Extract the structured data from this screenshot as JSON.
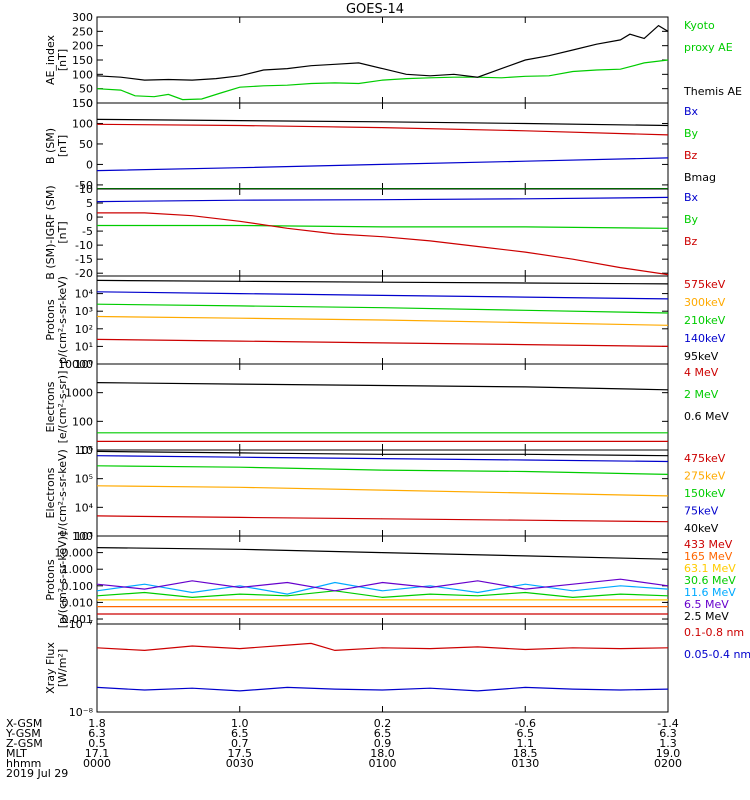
{
  "title": "GOES-14",
  "chart_data": [
    {
      "type": "line",
      "ylabel": [
        "AE_index",
        "[nT]"
      ],
      "ylim": [
        0,
        300
      ],
      "yscale": "linear",
      "yticks": [
        "0",
        "50",
        "100",
        "150",
        "200",
        "250",
        "300"
      ],
      "yvals": [
        0,
        50,
        100,
        150,
        200,
        250,
        300
      ],
      "legend": [
        "Kyoto",
        "proxy AE",
        "",
        "Themis AE"
      ],
      "legend_colors": [
        "#00cc00",
        "#00cc00",
        "#000000",
        "#000000"
      ],
      "series": [
        {
          "name": "Kyoto proxy AE",
          "color": "#00cc00",
          "x": [
            0,
            5,
            8,
            12,
            15,
            18,
            22,
            26,
            30,
            35,
            40,
            45,
            50,
            55,
            60,
            65,
            70,
            75,
            80,
            85,
            90,
            95,
            100,
            105,
            110,
            115,
            120
          ],
          "values": [
            50,
            45,
            25,
            22,
            30,
            12,
            14,
            35,
            55,
            60,
            62,
            68,
            70,
            68,
            80,
            85,
            88,
            90,
            90,
            88,
            93,
            95,
            110,
            115,
            118,
            140,
            150
          ]
        },
        {
          "name": "Themis AE",
          "color": "#000000",
          "x": [
            0,
            5,
            10,
            15,
            20,
            25,
            30,
            35,
            40,
            45,
            50,
            55,
            60,
            65,
            70,
            75,
            80,
            85,
            90,
            95,
            100,
            105,
            110,
            112,
            115,
            118,
            120
          ],
          "values": [
            95,
            90,
            80,
            82,
            80,
            85,
            95,
            115,
            120,
            130,
            135,
            140,
            120,
            100,
            95,
            100,
            90,
            120,
            150,
            165,
            185,
            205,
            220,
            240,
            225,
            270,
            250
          ]
        }
      ]
    },
    {
      "type": "line",
      "ylabel": [
        "B (SM)",
        "[nT]"
      ],
      "ylim": [
        -60,
        150
      ],
      "yscale": "linear",
      "yticks": [
        "-50",
        "0",
        "50",
        "100",
        "150"
      ],
      "yvals": [
        -50,
        0,
        50,
        100,
        150
      ],
      "legend": [
        "Bx",
        "By",
        "Bz",
        "Bmag"
      ],
      "legend_colors": [
        "#0000cc",
        "#00cc00",
        "#cc0000",
        "#000000"
      ],
      "series": [
        {
          "name": "Bx",
          "color": "#0000cc",
          "x": [
            0,
            30,
            60,
            90,
            120
          ],
          "values": [
            -15,
            -8,
            0,
            8,
            16
          ]
        },
        {
          "name": "By",
          "color": "#00cc00",
          "x": [
            0,
            30,
            60,
            90,
            120
          ],
          "values": [
            -59,
            -59,
            -59,
            -59,
            -59
          ]
        },
        {
          "name": "Bz",
          "color": "#cc0000",
          "x": [
            0,
            30,
            60,
            90,
            120
          ],
          "values": [
            98,
            95,
            90,
            82,
            72
          ]
        },
        {
          "name": "Bmag",
          "color": "#000000",
          "x": [
            0,
            30,
            60,
            90,
            120
          ],
          "values": [
            110,
            107,
            104,
            100,
            95
          ]
        }
      ]
    },
    {
      "type": "line",
      "ylabel": [
        "B (SM)-IGRF (SM)",
        "[nT]"
      ],
      "ylim": [
        -21,
        10
      ],
      "yscale": "linear",
      "yticks": [
        "-20",
        "-15",
        "-10",
        "-5",
        "0",
        "5",
        "10"
      ],
      "yvals": [
        -20,
        -15,
        -10,
        -5,
        0,
        5,
        10
      ],
      "legend": [
        "Bx",
        "By",
        "Bz"
      ],
      "legend_colors": [
        "#0000cc",
        "#00cc00",
        "#cc0000"
      ],
      "series": [
        {
          "name": "Bx",
          "color": "#0000cc",
          "x": [
            0,
            30,
            60,
            90,
            120
          ],
          "values": [
            5.5,
            6,
            6.2,
            6.5,
            7
          ]
        },
        {
          "name": "By",
          "color": "#00cc00",
          "x": [
            0,
            30,
            60,
            90,
            120
          ],
          "values": [
            -3,
            -3,
            -3.5,
            -3.5,
            -4
          ]
        },
        {
          "name": "Bz",
          "color": "#cc0000",
          "x": [
            0,
            10,
            20,
            30,
            40,
            50,
            60,
            70,
            80,
            90,
            100,
            110,
            120
          ],
          "values": [
            1.5,
            1.5,
            0.5,
            -1.5,
            -4,
            -6,
            -7,
            -8.5,
            -10.5,
            -12.5,
            -15,
            -18,
            -20.5
          ]
        }
      ]
    },
    {
      "type": "line",
      "ylabel": [
        "Protons",
        "p/(cm²-s-sr-keV)"
      ],
      "ylim": [
        0,
        5
      ],
      "yscale": "log",
      "yticks": [
        "10⁰",
        "10¹",
        "10²",
        "10³",
        "10⁴"
      ],
      "yvals": [
        0,
        1,
        2,
        3,
        4
      ],
      "legend": [
        "575keV",
        "300keV",
        "210keV",
        "140keV",
        "95keV"
      ],
      "legend_colors": [
        "#cc0000",
        "#ffaa00",
        "#00cc00",
        "#0000cc",
        "#000000"
      ],
      "series": [
        {
          "name": "575keV",
          "color": "#cc0000",
          "x": [
            0,
            30,
            60,
            90,
            120
          ],
          "values": [
            1.4,
            1.3,
            1.2,
            1.1,
            1.0
          ]
        },
        {
          "name": "300keV",
          "color": "#ffaa00",
          "x": [
            0,
            30,
            60,
            90,
            120
          ],
          "values": [
            2.7,
            2.6,
            2.5,
            2.35,
            2.2
          ]
        },
        {
          "name": "210keV",
          "color": "#00cc00",
          "x": [
            0,
            30,
            60,
            90,
            120
          ],
          "values": [
            3.4,
            3.3,
            3.2,
            3.05,
            2.9
          ]
        },
        {
          "name": "140keV",
          "color": "#0000cc",
          "x": [
            0,
            30,
            60,
            90,
            120
          ],
          "values": [
            4.1,
            4.0,
            3.9,
            3.8,
            3.7
          ]
        },
        {
          "name": "95keV",
          "color": "#000000",
          "x": [
            0,
            30,
            60,
            90,
            120
          ],
          "values": [
            4.75,
            4.7,
            4.65,
            4.6,
            4.55
          ]
        }
      ]
    },
    {
      "type": "line",
      "ylabel": [
        "Electrons",
        "[e/(cm²-s-sr)]"
      ],
      "ylim": [
        1,
        4
      ],
      "yscale": "log",
      "yticks": [
        "10",
        "100",
        "1000",
        "10000"
      ],
      "yvals": [
        1,
        2,
        3,
        4
      ],
      "legend": [
        "4 MeV",
        "2 MeV",
        "0.6 MeV"
      ],
      "legend_colors": [
        "#cc0000",
        "#00cc00",
        "#000000"
      ],
      "series": [
        {
          "name": "4 MeV",
          "color": "#cc0000",
          "x": [
            0,
            30,
            60,
            90,
            120
          ],
          "values": [
            1.3,
            1.3,
            1.3,
            1.3,
            1.3
          ]
        },
        {
          "name": "2 MeV",
          "color": "#00cc00",
          "x": [
            0,
            30,
            60,
            90,
            120
          ],
          "values": [
            1.6,
            1.6,
            1.6,
            1.6,
            1.6
          ]
        },
        {
          "name": "0.6 MeV",
          "color": "#000000",
          "x": [
            0,
            30,
            60,
            90,
            120
          ],
          "values": [
            3.35,
            3.3,
            3.25,
            3.2,
            3.1
          ]
        }
      ]
    },
    {
      "type": "line",
      "ylabel": [
        "Electrons",
        "e/(cm²-s-sr-keV)"
      ],
      "ylim": [
        3,
        6
      ],
      "yscale": "log",
      "yticks": [
        "10³",
        "10⁴",
        "10⁵",
        "10⁶"
      ],
      "yvals": [
        3,
        4,
        5,
        6
      ],
      "legend": [
        "475keV",
        "275keV",
        "150keV",
        "75keV",
        "40keV"
      ],
      "legend_colors": [
        "#cc0000",
        "#ffaa00",
        "#00cc00",
        "#0000cc",
        "#000000"
      ],
      "series": [
        {
          "name": "475keV",
          "color": "#cc0000",
          "x": [
            0,
            30,
            60,
            90,
            120
          ],
          "values": [
            3.7,
            3.65,
            3.6,
            3.55,
            3.5
          ]
        },
        {
          "name": "275keV",
          "color": "#ffaa00",
          "x": [
            0,
            30,
            60,
            90,
            120
          ],
          "values": [
            4.75,
            4.7,
            4.6,
            4.5,
            4.4
          ]
        },
        {
          "name": "150keV",
          "color": "#00cc00",
          "x": [
            0,
            30,
            60,
            90,
            120
          ],
          "values": [
            5.45,
            5.4,
            5.3,
            5.25,
            5.15
          ]
        },
        {
          "name": "75keV",
          "color": "#0000cc",
          "x": [
            0,
            30,
            60,
            90,
            120
          ],
          "values": [
            5.8,
            5.75,
            5.7,
            5.65,
            5.6
          ]
        },
        {
          "name": "40keV",
          "color": "#000000",
          "x": [
            0,
            30,
            60,
            90,
            120
          ],
          "values": [
            5.95,
            5.9,
            5.85,
            5.85,
            5.8
          ]
        }
      ]
    },
    {
      "type": "line",
      "ylabel": [
        "Protons",
        "[p/(cm²-s-sr-keV)]"
      ],
      "ylim": [
        -3.3,
        2
      ],
      "yscale": "log",
      "yticks": [
        "0.001",
        "0.010",
        "0.100",
        "1.000",
        "10.000",
        "100"
      ],
      "yvals": [
        -3,
        -2,
        -1,
        0,
        1,
        2
      ],
      "legend": [
        "433 MeV",
        "165 MeV",
        "63.1 MeV",
        "30.6 MeV",
        "11.6 MeV",
        "6.5 MeV",
        "2.5 MeV"
      ],
      "legend_colors": [
        "#cc0000",
        "#ff6600",
        "#ffcc00",
        "#00cc00",
        "#00aaff",
        "#6600cc",
        "#000000"
      ],
      "series": [
        {
          "name": "433 MeV",
          "color": "#cc0000",
          "x": [
            0,
            30,
            60,
            90,
            120
          ],
          "values": [
            -2.7,
            -2.7,
            -2.7,
            -2.7,
            -2.7
          ]
        },
        {
          "name": "165 MeV",
          "color": "#ff6600",
          "x": [
            0,
            30,
            60,
            90,
            120
          ],
          "values": [
            -2.25,
            -2.25,
            -2.25,
            -2.25,
            -2.25
          ]
        },
        {
          "name": "63.1 MeV",
          "color": "#ffcc00",
          "x": [
            0,
            30,
            60,
            90,
            120
          ],
          "values": [
            -1.85,
            -1.85,
            -1.85,
            -1.85,
            -1.85
          ]
        },
        {
          "name": "30.6 MeV",
          "color": "#00cc00",
          "x": [
            0,
            10,
            20,
            30,
            40,
            50,
            60,
            70,
            80,
            90,
            100,
            110,
            120
          ],
          "values": [
            -1.6,
            -1.4,
            -1.7,
            -1.5,
            -1.6,
            -1.3,
            -1.7,
            -1.5,
            -1.6,
            -1.4,
            -1.7,
            -1.5,
            -1.6
          ]
        },
        {
          "name": "11.6 MeV",
          "color": "#00aaff",
          "x": [
            0,
            10,
            20,
            30,
            40,
            50,
            60,
            70,
            80,
            90,
            100,
            110,
            120
          ],
          "values": [
            -1.3,
            -0.9,
            -1.4,
            -1.0,
            -1.5,
            -0.8,
            -1.3,
            -1.0,
            -1.4,
            -0.9,
            -1.3,
            -1.0,
            -1.2
          ]
        },
        {
          "name": "6.5 MeV",
          "color": "#6600cc",
          "x": [
            0,
            10,
            20,
            30,
            40,
            50,
            60,
            70,
            80,
            90,
            100,
            110,
            120
          ],
          "values": [
            -0.9,
            -1.2,
            -0.7,
            -1.1,
            -0.8,
            -1.3,
            -0.8,
            -1.1,
            -0.7,
            -1.2,
            -0.9,
            -0.6,
            -1.0
          ]
        },
        {
          "name": "2.5 MeV",
          "color": "#000000",
          "x": [
            0,
            30,
            60,
            90,
            120
          ],
          "values": [
            1.3,
            1.2,
            1.0,
            0.8,
            0.6
          ]
        }
      ]
    },
    {
      "type": "line",
      "ylabel": [
        "Xray Flux",
        "[W/m²]"
      ],
      "ylim": [
        -8,
        -7
      ],
      "yscale": "log",
      "yticks": [
        "10⁻⁸",
        "10⁻⁷"
      ],
      "yvals": [
        -8,
        -7
      ],
      "legend": [
        "0.1-0.8 nm",
        "0.05-0.4 nm"
      ],
      "legend_colors": [
        "#cc0000",
        "#0000cc"
      ],
      "series": [
        {
          "name": "0.1-0.8 nm",
          "color": "#cc0000",
          "x": [
            0,
            10,
            20,
            30,
            40,
            45,
            50,
            60,
            70,
            80,
            90,
            100,
            110,
            120
          ],
          "values": [
            -7.27,
            -7.3,
            -7.25,
            -7.28,
            -7.24,
            -7.22,
            -7.3,
            -7.27,
            -7.28,
            -7.26,
            -7.29,
            -7.27,
            -7.28,
            -7.27
          ]
        },
        {
          "name": "0.05-0.4 nm",
          "color": "#0000cc",
          "x": [
            0,
            10,
            20,
            30,
            40,
            50,
            60,
            70,
            80,
            90,
            100,
            110,
            120
          ],
          "values": [
            -7.72,
            -7.75,
            -7.73,
            -7.76,
            -7.72,
            -7.74,
            -7.75,
            -7.73,
            -7.76,
            -7.72,
            -7.74,
            -7.75,
            -7.74
          ]
        }
      ]
    }
  ],
  "xaxis": {
    "range_minutes": [
      0,
      120
    ],
    "tick_minutes": [
      0,
      30,
      60,
      90,
      120
    ],
    "rows": [
      {
        "label": "X-GSM",
        "values": [
          "1.8",
          "1.0",
          "0.2",
          "-0.6",
          "-1.4"
        ]
      },
      {
        "label": "Y-GSM",
        "values": [
          "6.3",
          "6.5",
          "6.5",
          "6.5",
          "6.3"
        ]
      },
      {
        "label": "Z-GSM",
        "values": [
          "0.5",
          "0.7",
          "0.9",
          "1.1",
          "1.3"
        ]
      },
      {
        "label": "MLT",
        "values": [
          "17.1",
          "17.5",
          "18.0",
          "18.5",
          "19.0"
        ]
      },
      {
        "label": "hhmm",
        "values": [
          "0000",
          "0030",
          "0100",
          "0130",
          "0200"
        ]
      }
    ],
    "date": "2019 Jul 29"
  }
}
